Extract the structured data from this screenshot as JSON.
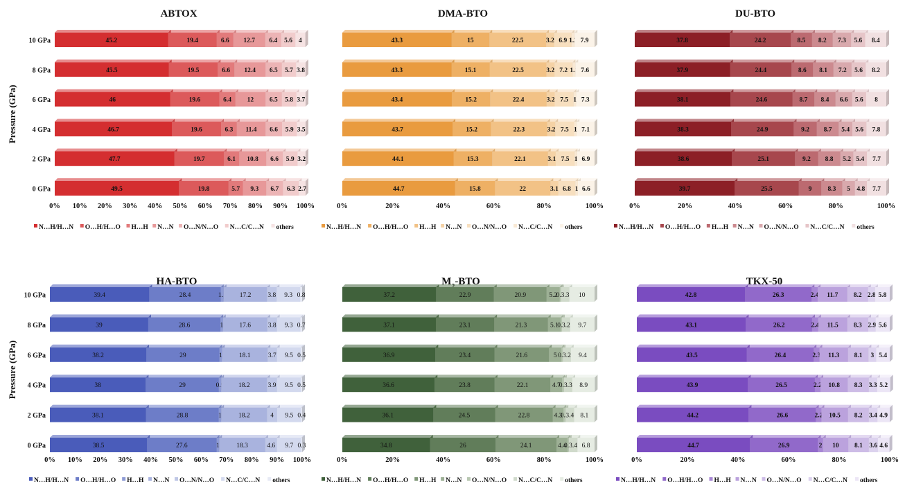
{
  "legend_labels": [
    "N…H/H…N",
    "O…H/H…O",
    "H…H",
    "N…N",
    "O…N/N…O",
    "N…C/C…N",
    "others"
  ],
  "colors": {
    "ABTOX": [
      "#d42e30",
      "#dc5a5b",
      "#e27a7b",
      "#e79899",
      "#ecb4b5",
      "#f1cccc",
      "#f6e3e3"
    ],
    "DMA-BTO": [
      "#e99b3f",
      "#eeb064",
      "#f2c286",
      "#f5d2a5",
      "#f7dfbf",
      "#f9e9d4",
      "#fbf3e8"
    ],
    "DU-BTO": [
      "#8c1f26",
      "#a7474d",
      "#bc6a70",
      "#cc8a8f",
      "#d9a9ad",
      "#e6c5c8",
      "#f1e0e1"
    ],
    "HA-BTO": [
      "#4a5cba",
      "#6d7dc8",
      "#8e9bd4",
      "#a9b3de",
      "#bfc7e6",
      "#d3d9ee",
      "#e7eaf5"
    ],
    "M2-BTO": [
      "#40613b",
      "#617d5a",
      "#809778",
      "#9db095",
      "#b8c7b1",
      "#d0dacb",
      "#e6ece3"
    ],
    "TKX-50": [
      "#7a4cc0",
      "#9169ca",
      "#a786d4",
      "#bba2dd",
      "#cdbce6",
      "#dcd2ee",
      "#ece6f6"
    ]
  },
  "chart_data": [
    {
      "type": "bar",
      "title": "ABTOX",
      "ylabel": "Pressure (GPa)",
      "categories": [
        "10 GPa",
        "8 GPa",
        "6 GPa",
        "4 GPa",
        "2 GPa",
        "0 GPa"
      ],
      "xticks": [
        "0%",
        "10%",
        "20%",
        "30%",
        "40%",
        "50%",
        "60%",
        "70%",
        "80%",
        "90%",
        "100%"
      ],
      "series": [
        {
          "name": "N…H/H…N",
          "values": [
            45.2,
            45.5,
            46,
            46.7,
            47.7,
            49.5
          ]
        },
        {
          "name": "O…H/H…O",
          "values": [
            19.4,
            19.5,
            19.6,
            19.6,
            19.7,
            19.8
          ]
        },
        {
          "name": "H…H",
          "values": [
            6.6,
            6.6,
            6.4,
            6.3,
            6.1,
            5.7
          ]
        },
        {
          "name": "N…N",
          "values": [
            12.7,
            12.4,
            12,
            11.4,
            10.8,
            9.3
          ]
        },
        {
          "name": "O…N/N…O",
          "values": [
            6.4,
            6.5,
            6.5,
            6.6,
            6.6,
            6.7
          ]
        },
        {
          "name": "N…C/C…N",
          "values": [
            5.6,
            5.7,
            5.8,
            5.9,
            5.9,
            6.3
          ]
        },
        {
          "name": "others",
          "values": [
            4,
            3.8,
            3.7,
            3.5,
            3.2,
            2.7
          ]
        }
      ]
    },
    {
      "type": "bar",
      "title": "DMA-BTO",
      "ylabel": "",
      "categories": [
        "",
        "",
        "",
        "",
        "",
        ""
      ],
      "xticks": [
        "0%",
        "",
        "20%",
        "",
        "40%",
        "",
        "60%",
        "",
        "80%",
        "",
        "100%"
      ],
      "series": [
        {
          "name": "N…H/H…N",
          "values": [
            43.3,
            43.3,
            43.4,
            43.7,
            44.1,
            44.7
          ]
        },
        {
          "name": "O…H/H…O",
          "values": [
            15,
            15.1,
            15.2,
            15.2,
            15.3,
            15.8
          ]
        },
        {
          "name": "H…H",
          "values": [
            22.5,
            22.5,
            22.4,
            22.3,
            22.1,
            22
          ]
        },
        {
          "name": "N…N",
          "values": [
            3.2,
            3.2,
            3.2,
            3.2,
            3.1,
            3.1
          ]
        },
        {
          "name": "O…N/N…O",
          "values": [
            6.9,
            7.2,
            7.5,
            7.5,
            7.5,
            6.8
          ]
        },
        {
          "name": "N…C/C…N",
          "values": [
            1.2,
            1.1,
            1,
            1,
            1,
            1
          ]
        },
        {
          "name": "others",
          "values": [
            7.9,
            7.6,
            7.3,
            7.1,
            6.9,
            6.6
          ]
        }
      ]
    },
    {
      "type": "bar",
      "title": "DU-BTO",
      "ylabel": "",
      "categories": [
        "",
        "",
        "",
        "",
        "",
        ""
      ],
      "xticks": [
        "0%",
        "",
        "20%",
        "",
        "40%",
        "",
        "60%",
        "",
        "80%",
        "",
        "100%"
      ],
      "series": [
        {
          "name": "N…H/H…N",
          "values": [
            37.8,
            37.9,
            38.1,
            38.3,
            38.6,
            39.7
          ]
        },
        {
          "name": "O…H/H…O",
          "values": [
            24.2,
            24.4,
            24.6,
            24.9,
            25.1,
            25.5
          ]
        },
        {
          "name": "H…H",
          "values": [
            8.5,
            8.6,
            8.7,
            9.2,
            9.2,
            9
          ]
        },
        {
          "name": "N…N",
          "values": [
            8.2,
            8.1,
            8.4,
            8.7,
            8.8,
            8.3
          ]
        },
        {
          "name": "O…N/N…O",
          "values": [
            7.3,
            7.2,
            6.6,
            5.4,
            5.2,
            5
          ]
        },
        {
          "name": "N…C/C…N",
          "values": [
            5.6,
            5.6,
            5.6,
            5.6,
            5.4,
            4.8
          ]
        },
        {
          "name": "others",
          "values": [
            8.4,
            8.2,
            8,
            7.8,
            7.7,
            7.7
          ]
        }
      ]
    },
    {
      "type": "bar",
      "title": "HA-BTO",
      "ylabel": "Pressure (GPa)",
      "categories": [
        "10 GPa",
        "8 GPa",
        "6 GPa",
        "4 GPa",
        "2 GPa",
        "0 GPa"
      ],
      "xticks": [
        "0%",
        "10%",
        "20%",
        "30%",
        "40%",
        "50%",
        "60%",
        "70%",
        "80%",
        "90%",
        "100%"
      ],
      "series": [
        {
          "name": "N…H/H…N",
          "values": [
            39.4,
            39,
            38.2,
            38,
            38.1,
            38.5
          ]
        },
        {
          "name": "O…H/H…O",
          "values": [
            28.4,
            28.6,
            29,
            29,
            28.8,
            27.6
          ]
        },
        {
          "name": "H…H",
          "values": [
            1.1,
            1,
            1,
            0.9,
            1,
            1
          ]
        },
        {
          "name": "N…N",
          "values": [
            17.2,
            17.6,
            18.1,
            18.2,
            18.2,
            18.3
          ]
        },
        {
          "name": "O…N/N…O",
          "values": [
            3.8,
            3.8,
            3.7,
            3.9,
            4,
            4.6
          ]
        },
        {
          "name": "N…C/C…N",
          "values": [
            9.3,
            9.3,
            9.5,
            9.5,
            9.5,
            9.7
          ]
        },
        {
          "name": "others",
          "values": [
            0.8,
            0.7,
            0.5,
            0.5,
            0.4,
            0.3
          ]
        }
      ]
    },
    {
      "type": "bar",
      "title": "M",
      "title_sub": "2",
      "title_rest": "-BTO",
      "ylabel": "",
      "categories": [
        "",
        "",
        "",
        "",
        "",
        ""
      ],
      "xticks": [
        "0%",
        "",
        "20%",
        "",
        "40%",
        "",
        "60%",
        "",
        "80%",
        "",
        "100%"
      ],
      "series": [
        {
          "name": "N…H/H…N",
          "values": [
            37.2,
            37.1,
            36.9,
            36.6,
            36.1,
            34.8
          ]
        },
        {
          "name": "O…H/H…O",
          "values": [
            22.9,
            23.1,
            23.4,
            23.8,
            24.5,
            26
          ]
        },
        {
          "name": "H…H",
          "values": [
            20.9,
            21.3,
            21.6,
            22.1,
            22.8,
            24.1
          ]
        },
        {
          "name": "N…N",
          "values": [
            5.2,
            5.1,
            5,
            4.7,
            4.3,
            4.4
          ]
        },
        {
          "name": "O…N/N…O",
          "values": [
            0.5,
            0.5,
            0.5,
            0.7,
            0.8,
            0.5
          ]
        },
        {
          "name": "N…C/C…N",
          "values": [
            3.3,
            3.2,
            3.2,
            3.3,
            3.4,
            3.4
          ]
        },
        {
          "name": "others",
          "values": [
            10,
            9.7,
            9.4,
            8.9,
            8.1,
            6.8
          ]
        }
      ]
    },
    {
      "type": "bar",
      "title": "TKX-50",
      "ylabel": "",
      "categories": [
        "",
        "",
        "",
        "",
        "",
        ""
      ],
      "xticks": [
        "0%",
        "",
        "20%",
        "",
        "40%",
        "",
        "60%",
        "",
        "80%",
        "",
        "100%"
      ],
      "series": [
        {
          "name": "N…H/H…N",
          "values": [
            42.8,
            43.1,
            43.5,
            43.9,
            44.2,
            44.7
          ]
        },
        {
          "name": "O…H/H…O",
          "values": [
            26.3,
            26.2,
            26.4,
            26.5,
            26.6,
            26.9
          ]
        },
        {
          "name": "H…H",
          "values": [
            2.4,
            2.4,
            2.3,
            2.2,
            2.2,
            2
          ]
        },
        {
          "name": "N…N",
          "values": [
            11.7,
            11.5,
            11.3,
            10.8,
            10.5,
            10
          ]
        },
        {
          "name": "O…N/N…O",
          "values": [
            8.2,
            8.3,
            8.1,
            8.3,
            8.2,
            8.1
          ]
        },
        {
          "name": "N…C/C…N",
          "values": [
            2.8,
            2.9,
            3,
            3.3,
            3.4,
            3.6
          ]
        },
        {
          "name": "others",
          "values": [
            5.8,
            5.6,
            5.4,
            5.2,
            4.9,
            4.6
          ]
        }
      ]
    }
  ]
}
